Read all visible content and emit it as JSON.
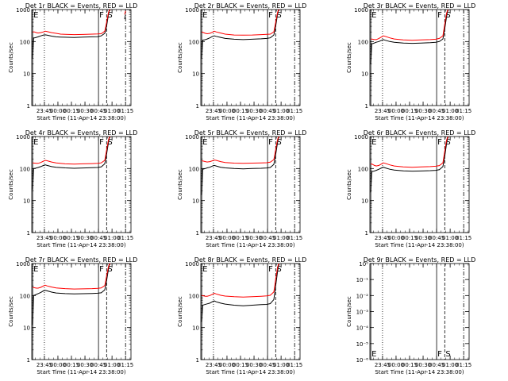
{
  "colors": {
    "events": "#000000",
    "lld": "#ff0000",
    "axes": "#000000",
    "background": "#ffffff"
  },
  "xlabel": "Start Time (11-Apr-14 23:38:00)",
  "ylabel": "Counts/sec",
  "x_tick_labels": [
    "23:45",
    "00:00",
    "00:15",
    "00:30",
    "00:45",
    "01:00",
    "01:15"
  ],
  "y_tick_labels_default": [
    "1",
    "10",
    "100",
    "1000"
  ],
  "y_tick_labels_panel9": [
    "10⁰",
    "10⁻¹",
    "10⁻²",
    "10⁻³",
    "10⁻⁴",
    "10⁻⁵",
    "10⁻⁶"
  ],
  "marker_labels": {
    "E": "E",
    "F": "F",
    "S": "S"
  },
  "chart_data": [
    {
      "type": "line",
      "title": "Det 1r BLACK = Events, RED = LLD",
      "xlim_min": [
        -7,
        103
      ],
      "ylog": true,
      "ylim": [
        1,
        1000
      ],
      "vlines_min": {
        "E": -6,
        "dotted": 7,
        "F": 67,
        "S": 76,
        "dashdot": 97
      },
      "series": [
        {
          "color": "#000000",
          "x": [
            -6,
            -5,
            -4,
            -3,
            0,
            3,
            6,
            8,
            10,
            15,
            20,
            25,
            30,
            40,
            50,
            60,
            66,
            70,
            74,
            76,
            78,
            79,
            80,
            90,
            95,
            96,
            97
          ],
          "y": [
            30,
            130,
            130,
            132,
            140,
            150,
            160,
            162,
            158,
            148,
            140,
            138,
            136,
            134,
            138,
            140,
            142,
            150,
            180,
            300,
            700,
            900,
            950,
            null,
            null,
            500,
            700
          ]
        },
        {
          "color": "#ff0000",
          "x": [
            -6,
            -4,
            -2,
            0,
            3,
            6,
            8,
            10,
            15,
            20,
            25,
            30,
            40,
            50,
            60,
            66,
            70,
            74,
            76,
            78,
            79,
            80,
            90,
            95,
            96,
            97
          ],
          "y": [
            200,
            200,
            190,
            185,
            190,
            200,
            210,
            205,
            190,
            180,
            170,
            168,
            165,
            167,
            170,
            172,
            175,
            210,
            400,
            800,
            950,
            980,
            null,
            null,
            700,
            900
          ]
        }
      ]
    },
    {
      "type": "line",
      "title": "Det 2r BLACK = Events, RED = LLD",
      "xlim_min": [
        -7,
        103
      ],
      "ylog": true,
      "ylim": [
        1,
        1000
      ],
      "vlines_min": {
        "E": -6,
        "dotted": 7,
        "F": 67,
        "S": 76,
        "dashdot": 97
      },
      "series": [
        {
          "color": "#000000",
          "x": [
            -6,
            -5,
            -3,
            0,
            3,
            6,
            8,
            10,
            15,
            20,
            30,
            40,
            50,
            60,
            66,
            70,
            74,
            76,
            78,
            79,
            80
          ],
          "y": [
            30,
            110,
            112,
            120,
            130,
            145,
            150,
            145,
            135,
            125,
            118,
            115,
            118,
            122,
            125,
            130,
            160,
            300,
            700,
            900,
            950
          ]
        },
        {
          "color": "#ff0000",
          "x": [
            -6,
            -4,
            -2,
            0,
            3,
            6,
            8,
            10,
            15,
            20,
            30,
            40,
            50,
            60,
            66,
            70,
            74,
            76,
            78,
            79,
            80
          ],
          "y": [
            200,
            190,
            180,
            175,
            180,
            195,
            210,
            200,
            185,
            170,
            160,
            158,
            160,
            165,
            168,
            170,
            200,
            400,
            800,
            950,
            980
          ]
        }
      ]
    },
    {
      "type": "line",
      "title": "Det 3r BLACK = Events, RED = LLD",
      "xlim_min": [
        -7,
        103
      ],
      "ylog": true,
      "ylim": [
        1,
        1000
      ],
      "vlines_min": {
        "E": -6,
        "dotted": 7,
        "F": 67,
        "S": 76,
        "dashdot": 97
      },
      "series": [
        {
          "color": "#000000",
          "x": [
            -6,
            -5,
            -3,
            0,
            3,
            6,
            8,
            10,
            15,
            20,
            30,
            40,
            50,
            60,
            66,
            70,
            74,
            76,
            78,
            79,
            80
          ],
          "y": [
            20,
            85,
            88,
            95,
            100,
            110,
            115,
            110,
            100,
            95,
            90,
            88,
            90,
            92,
            95,
            100,
            120,
            250,
            600,
            850,
            950
          ]
        },
        {
          "color": "#ff0000",
          "x": [
            -6,
            -4,
            -2,
            0,
            3,
            6,
            8,
            10,
            15,
            20,
            30,
            40,
            50,
            60,
            66,
            70,
            74,
            76,
            78,
            79,
            80
          ],
          "y": [
            120,
            118,
            115,
            115,
            125,
            140,
            150,
            145,
            130,
            120,
            112,
            110,
            112,
            115,
            118,
            125,
            150,
            350,
            750,
            930,
            970
          ]
        }
      ]
    },
    {
      "type": "line",
      "title": "Det 4r BLACK = Events, RED = LLD",
      "xlim_min": [
        -7,
        103
      ],
      "ylog": true,
      "ylim": [
        1,
        1000
      ],
      "vlines_min": {
        "E": -6,
        "dotted": 7,
        "F": 67,
        "S": 76,
        "dashdot": 97
      },
      "series": [
        {
          "color": "#000000",
          "x": [
            -6,
            -5,
            -3,
            0,
            3,
            6,
            8,
            10,
            15,
            20,
            30,
            40,
            50,
            60,
            66,
            70,
            74,
            76,
            78,
            79,
            80
          ],
          "y": [
            22,
            100,
            102,
            108,
            115,
            125,
            130,
            125,
            115,
            110,
            105,
            102,
            104,
            106,
            108,
            112,
            140,
            280,
            650,
            880,
            950
          ]
        },
        {
          "color": "#ff0000",
          "x": [
            -6,
            -4,
            -2,
            0,
            3,
            6,
            8,
            10,
            15,
            20,
            30,
            40,
            50,
            60,
            66,
            70,
            74,
            76,
            78,
            79,
            80
          ],
          "y": [
            150,
            148,
            145,
            145,
            155,
            170,
            180,
            175,
            160,
            150,
            140,
            138,
            140,
            143,
            145,
            150,
            180,
            380,
            780,
            940,
            975
          ]
        }
      ]
    },
    {
      "type": "line",
      "title": "Det 5r BLACK = Events, RED = LLD",
      "xlim_min": [
        -7,
        103
      ],
      "ylog": true,
      "ylim": [
        1,
        1000
      ],
      "vlines_min": {
        "E": -6,
        "dotted": 7,
        "F": 67,
        "S": 76,
        "dashdot": 97
      },
      "series": [
        {
          "color": "#000000",
          "x": [
            -6,
            -5,
            -3,
            0,
            3,
            6,
            8,
            10,
            15,
            20,
            30,
            40,
            50,
            60,
            66,
            70,
            74,
            76,
            78,
            79,
            80
          ],
          "y": [
            15,
            95,
            98,
            105,
            110,
            120,
            125,
            120,
            110,
            105,
            100,
            98,
            100,
            102,
            104,
            108,
            135,
            270,
            640,
            870,
            950
          ]
        },
        {
          "color": "#ff0000",
          "x": [
            -6,
            -4,
            -2,
            0,
            3,
            6,
            8,
            10,
            15,
            20,
            30,
            40,
            50,
            60,
            66,
            70,
            74,
            76,
            78,
            79,
            80
          ],
          "y": [
            175,
            170,
            165,
            160,
            165,
            175,
            185,
            180,
            165,
            155,
            148,
            145,
            148,
            150,
            152,
            158,
            190,
            390,
            790,
            945,
            978
          ]
        }
      ]
    },
    {
      "type": "line",
      "title": "Det 6r BLACK = Events, RED = LLD",
      "xlim_min": [
        -7,
        103
      ],
      "ylog": true,
      "ylim": [
        1,
        1000
      ],
      "vlines_min": {
        "E": -6,
        "dotted": 7,
        "F": 67,
        "S": 76,
        "dashdot": 97
      },
      "series": [
        {
          "color": "#000000",
          "x": [
            -6,
            -5,
            -3,
            0,
            3,
            6,
            8,
            10,
            15,
            20,
            30,
            40,
            50,
            60,
            66,
            70,
            74,
            76,
            78,
            79,
            80
          ],
          "y": [
            18,
            80,
            82,
            88,
            95,
            105,
            110,
            105,
            95,
            90,
            85,
            83,
            84,
            86,
            88,
            92,
            115,
            240,
            600,
            850,
            945
          ]
        },
        {
          "color": "#ff0000",
          "x": [
            -6,
            -4,
            -2,
            0,
            3,
            6,
            8,
            10,
            15,
            20,
            30,
            40,
            50,
            60,
            66,
            70,
            74,
            76,
            78,
            79,
            80
          ],
          "y": [
            140,
            135,
            125,
            120,
            125,
            140,
            150,
            145,
            130,
            120,
            112,
            110,
            112,
            115,
            118,
            124,
            150,
            350,
            760,
            935,
            972
          ]
        }
      ]
    },
    {
      "type": "line",
      "title": "Det 7r BLACK = Events, RED = LLD",
      "xlim_min": [
        -7,
        103
      ],
      "ylog": true,
      "ylim": [
        1,
        1000
      ],
      "vlines_min": {
        "E": -6,
        "dotted": 7,
        "F": 67,
        "S": 76,
        "dashdot": 97
      },
      "series": [
        {
          "color": "#000000",
          "x": [
            -6,
            -5,
            -3,
            0,
            3,
            6,
            8,
            10,
            15,
            20,
            30,
            40,
            50,
            60,
            66,
            70,
            74,
            76,
            78,
            79,
            80
          ],
          "y": [
            12,
            100,
            105,
            115,
            125,
            140,
            145,
            140,
            128,
            120,
            115,
            112,
            114,
            116,
            118,
            122,
            150,
            290,
            660,
            890,
            955
          ]
        },
        {
          "color": "#ff0000",
          "x": [
            -6,
            -4,
            -2,
            0,
            3,
            6,
            8,
            10,
            15,
            20,
            30,
            40,
            50,
            60,
            66,
            70,
            74,
            76,
            78,
            79,
            80
          ],
          "y": [
            180,
            175,
            170,
            170,
            180,
            200,
            210,
            200,
            185,
            172,
            165,
            160,
            162,
            165,
            168,
            172,
            205,
            410,
            800,
            950,
            980
          ]
        }
      ]
    },
    {
      "type": "line",
      "title": "Det 8r BLACK = Events, RED = LLD",
      "xlim_min": [
        -7,
        103
      ],
      "ylog": true,
      "ylim": [
        1,
        1000
      ],
      "vlines_min": {
        "E": -6,
        "dotted": 7,
        "F": 67,
        "S": 76,
        "dashdot": 97
      },
      "series": [
        {
          "color": "#000000",
          "x": [
            -6,
            -5,
            -3,
            0,
            3,
            6,
            8,
            10,
            15,
            20,
            30,
            40,
            50,
            60,
            66,
            70,
            74,
            76,
            78,
            79,
            80
          ],
          "y": [
            15,
            50,
            52,
            55,
            58,
            65,
            68,
            64,
            58,
            54,
            50,
            48,
            50,
            52,
            53,
            56,
            75,
            200,
            550,
            830,
            940
          ]
        },
        {
          "color": "#ff0000",
          "x": [
            -6,
            -4,
            -2,
            0,
            3,
            6,
            8,
            10,
            15,
            20,
            30,
            40,
            50,
            60,
            66,
            70,
            74,
            76,
            78,
            79,
            80
          ],
          "y": [
            100,
            98,
            95,
            95,
            100,
            110,
            118,
            112,
            102,
            96,
            92,
            90,
            92,
            95,
            98,
            102,
            130,
            320,
            740,
            930,
            970
          ]
        }
      ]
    },
    {
      "type": "line",
      "title": "Det 9r BLACK = Events, RED = LLD",
      "xlim_min": [
        -7,
        103
      ],
      "ylog": true,
      "ylim": [
        1e-06,
        1
      ],
      "vlines_min": {
        "E": -6,
        "dotted": 7,
        "F": 67,
        "S": 76,
        "dashdot": 97
      },
      "series": []
    }
  ]
}
